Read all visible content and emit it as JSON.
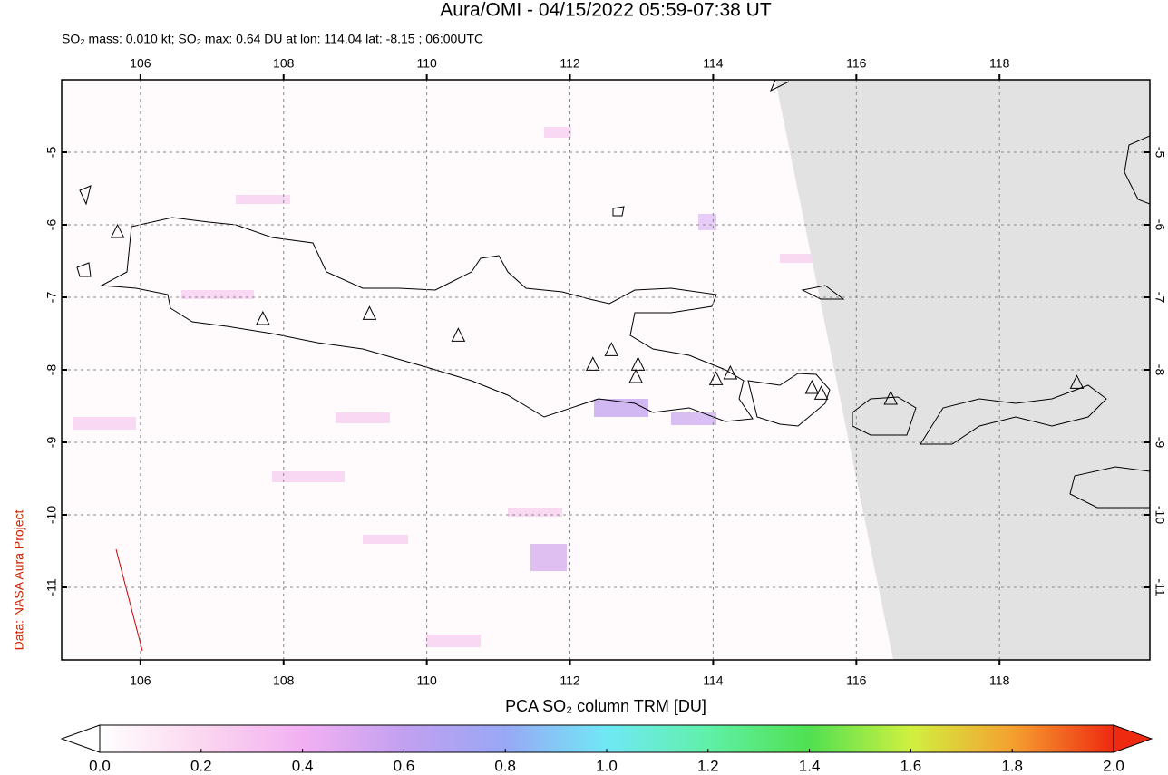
{
  "title": "Aura/OMI - 04/15/2022 05:59-07:38 UT",
  "subtitle": "SO₂ mass: 0.010 kt; SO₂ max: 0.64 DU at lon: 114.04 lat: -8.15 ; 06:00UTC",
  "credit": "Data: NASA Aura Project",
  "map": {
    "xlim": [
      104.9,
      120.1
    ],
    "ylim": [
      -12,
      -4
    ],
    "xticks": [
      106,
      108,
      110,
      112,
      114,
      116,
      118
    ],
    "yticks": [
      -5,
      -6,
      -7,
      -8,
      -9,
      -10,
      -11
    ],
    "grid": true,
    "volcanoes": {
      "lon": [
        105.68,
        107.71,
        109.2,
        110.44,
        112.32,
        112.58,
        112.95,
        112.92,
        114.04,
        114.24,
        115.38,
        115.51,
        116.48,
        119.08
      ],
      "lat": [
        -6.1,
        -7.3,
        -7.23,
        -7.53,
        -7.93,
        -7.73,
        -7.93,
        -8.1,
        -8.13,
        -8.05,
        -8.25,
        -8.33,
        -8.4,
        -8.18
      ]
    }
  },
  "colorbar": {
    "label": "PCA SO₂ column TRM [DU]",
    "lim": [
      0,
      2
    ],
    "ticks": [
      {
        "value": 0,
        "label": "0.0"
      },
      {
        "value": 0.2,
        "label": "0.2"
      },
      {
        "value": 0.4,
        "label": "0.4"
      },
      {
        "value": 0.6,
        "label": "0.6"
      },
      {
        "value": 0.8,
        "label": "0.8"
      },
      {
        "value": 1,
        "label": "1.0"
      },
      {
        "value": 1.2,
        "label": "1.2"
      },
      {
        "value": 1.4,
        "label": "1.4"
      },
      {
        "value": 1.6,
        "label": "1.6"
      },
      {
        "value": 1.8,
        "label": "1.8"
      },
      {
        "value": 2,
        "label": "2.0"
      }
    ]
  }
}
